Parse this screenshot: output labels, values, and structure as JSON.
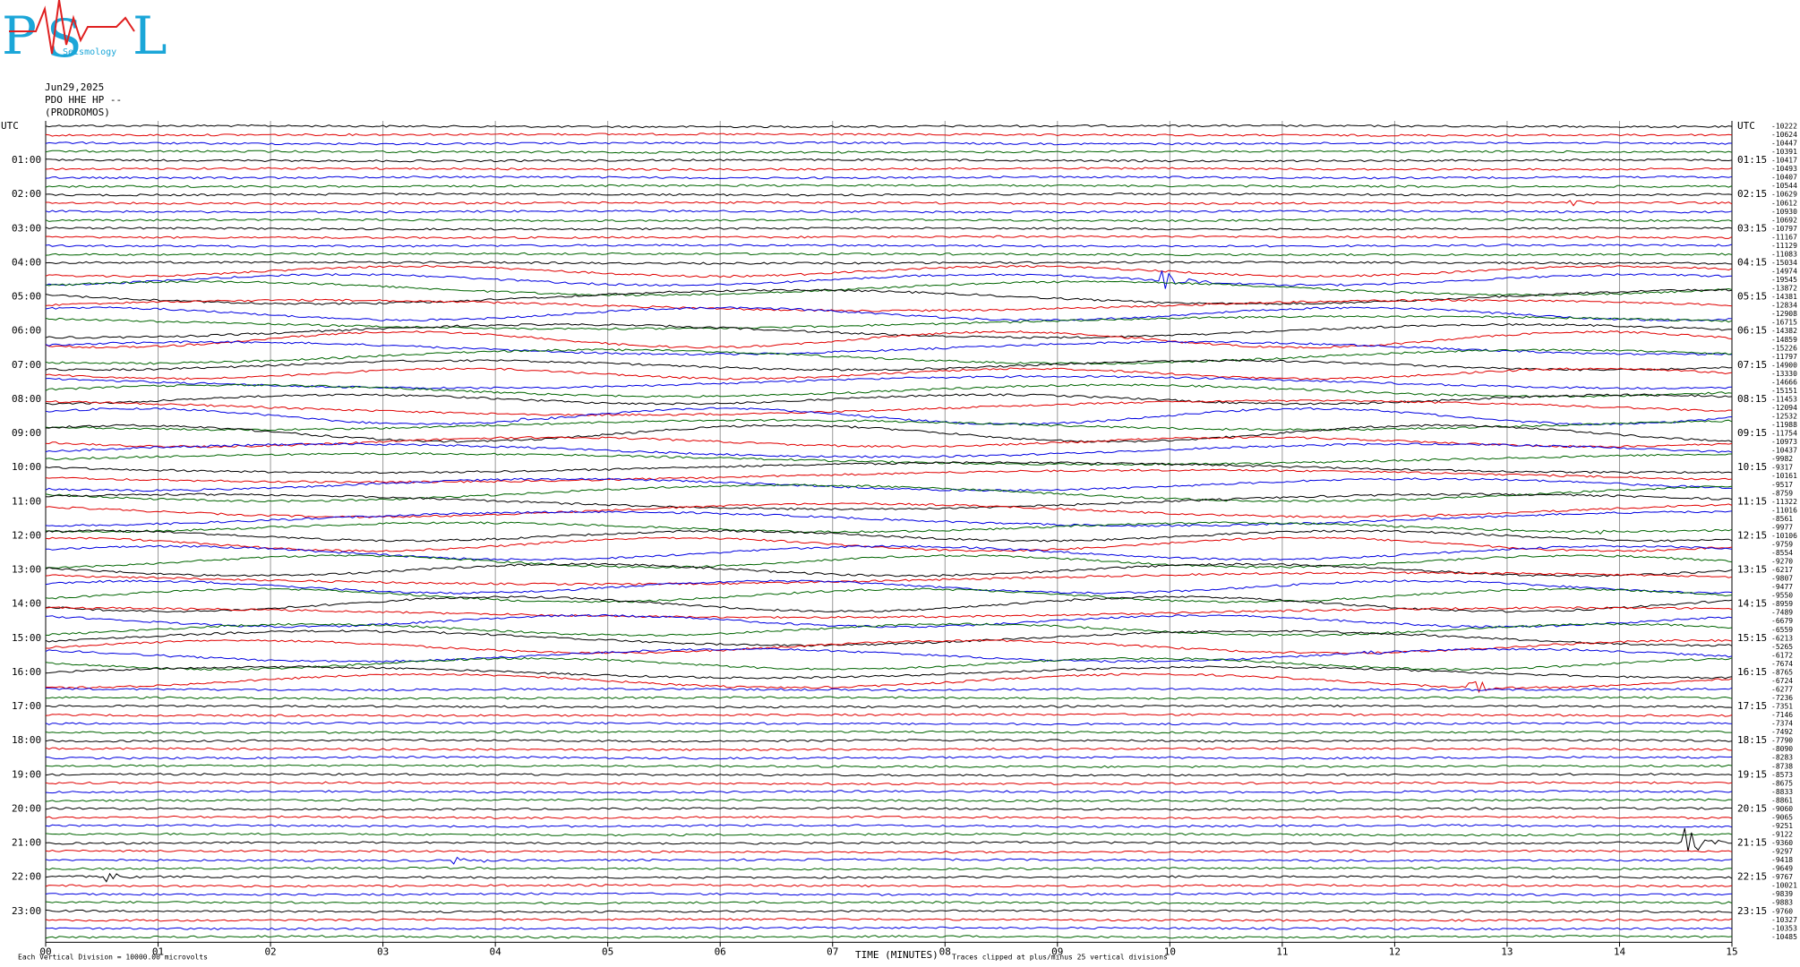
{
  "logo": {
    "letters": [
      "P",
      "S",
      "L"
    ],
    "caption": "Seismology"
  },
  "header": {
    "date": "Jun29,2025",
    "station": "PDO HHE HP --",
    "site": "(PRODROMOS)"
  },
  "left_labels": [
    "UTC",
    "01:00",
    "02:00",
    "03:00",
    "04:00",
    "05:00",
    "06:00",
    "07:00",
    "08:00",
    "09:00",
    "10:00",
    "11:00",
    "12:00",
    "13:00",
    "14:00",
    "15:00",
    "16:00",
    "17:00",
    "18:00",
    "19:00",
    "20:00",
    "21:00",
    "22:00",
    "23:00"
  ],
  "right_labels": [
    "UTC",
    "01:15",
    "02:15",
    "03:15",
    "04:15",
    "05:15",
    "06:15",
    "07:15",
    "08:15",
    "09:15",
    "10:15",
    "11:15",
    "12:15",
    "13:15",
    "14:15",
    "15:15",
    "16:15",
    "17:15",
    "18:15",
    "19:15",
    "20:15",
    "21:15",
    "22:15",
    "23:15"
  ],
  "trace_offsets": [
    -10222,
    -10624,
    -10447,
    -10391,
    -10417,
    -10493,
    -10407,
    -10544,
    -10629,
    -10612,
    -10930,
    -10692,
    -10797,
    -11167,
    -11129,
    -11083,
    -15034,
    -14974,
    -19545,
    -13872,
    -14381,
    -12834,
    -12908,
    -16715,
    -14382,
    -14859,
    -15226,
    -11797,
    -14900,
    -13330,
    -14666,
    -15151,
    -11453,
    -12094,
    -12532,
    -11988,
    -11754,
    -10973,
    -10437,
    -9982,
    -9317,
    -10161,
    -9517,
    -8759,
    -11322,
    -11016,
    -8561,
    -9977,
    -10106,
    -9759,
    -8554,
    -9270,
    -6217,
    -9807,
    -9477,
    -9550,
    -8959,
    -7489,
    -6679,
    -6559,
    -6213,
    -5265,
    -6172,
    -7674,
    -8765,
    -6724,
    -6277,
    -7236,
    -7351,
    -7146,
    -7374,
    -7492,
    -7790,
    -8090,
    -8283,
    -8738,
    -8573,
    -8675,
    -8833,
    -8861,
    -9060,
    -9065,
    -9251,
    -9122,
    -9360,
    -9297,
    -9418,
    -9649,
    -9767,
    -10021,
    -9839,
    -9883,
    -9760,
    -10327,
    -10353,
    -10485
  ],
  "x_axis": {
    "ticks": [
      "00",
      "01",
      "02",
      "03",
      "04",
      "05",
      "06",
      "07",
      "08",
      "09",
      "10",
      "11",
      "12",
      "13",
      "14",
      "15"
    ],
    "label": "TIME (MINUTES)"
  },
  "footer": {
    "scale": "Each Vertical Division = 10000.00 microvolts",
    "clip": "Traces clipped at plus/minus 25 vertical divisions"
  },
  "trace_colors": [
    "#000000",
    "#e00000",
    "#0000e0",
    "#006400"
  ]
}
